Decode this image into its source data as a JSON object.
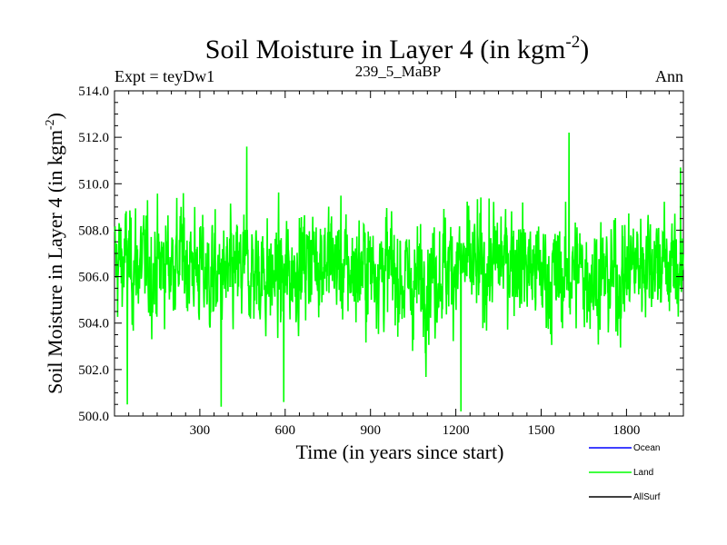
{
  "chart_data": {
    "type": "line",
    "title": "Soil Moisture in Layer 4 (in kgm",
    "title_sup": "-2",
    "title_end": ")",
    "subtitle_left": "Expt = teyDw1",
    "subtitle_center": "239_5_MaBP",
    "subtitle_right": "Ann",
    "xlabel": "Time (in years since start)",
    "ylabel": "Soil Moisture in Layer 4 (in kgm",
    "ylabel_sup": "-2",
    "ylabel_end": ")",
    "xlim": [
      0,
      2000
    ],
    "ylim": [
      500.0,
      514.0
    ],
    "xticks": [
      300,
      600,
      900,
      1200,
      1500,
      1800
    ],
    "xtick_labels": [
      "300",
      "600",
      "900",
      "1200",
      "1500",
      "1800"
    ],
    "yticks": [
      500,
      502,
      504,
      506,
      508,
      510,
      512,
      514
    ],
    "ytick_labels": [
      "500.0",
      "502.0",
      "504.0",
      "506.0",
      "508.0",
      "510.0",
      "512.0",
      "514.0"
    ],
    "legend": [
      {
        "label": "Ocean",
        "color": "#0000ff"
      },
      {
        "label": "Land",
        "color": "#00ff00"
      },
      {
        "label": "AllSurf",
        "color": "#000000"
      }
    ],
    "series": [
      {
        "name": "Land",
        "color": "#00ff00",
        "description": "annual mean, years 1-2000, fluctuating about 506.3 (range ~500.2 to ~512.2)",
        "mean": 506.3,
        "min": 500.2,
        "max": 512.2,
        "n_years": 2000,
        "notable_points": [
          {
            "x": 1598,
            "y": 512.2
          },
          {
            "x": 465,
            "y": 511.6
          },
          {
            "x": 1218,
            "y": 500.2
          },
          {
            "x": 375,
            "y": 500.4
          },
          {
            "x": 45,
            "y": 500.5
          },
          {
            "x": 595,
            "y": 500.6
          },
          {
            "x": 1990,
            "y": 510.7
          }
        ]
      }
    ]
  }
}
